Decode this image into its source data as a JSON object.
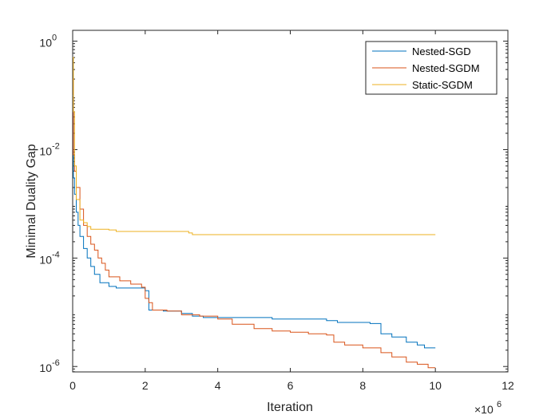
{
  "chart_data": {
    "type": "line",
    "title": "",
    "xlabel": "Iteration",
    "ylabel": "Minimal Duality Gap",
    "x_multiplier_label": "×10",
    "x_multiplier_exp": "6",
    "xlim": [
      0,
      12
    ],
    "ylim_log10": [
      -6.1,
      0.2
    ],
    "x_ticks": [
      0,
      2,
      4,
      6,
      8,
      10,
      12
    ],
    "x_tick_labels": [
      "0",
      "2",
      "4",
      "6",
      "8",
      "10",
      "12"
    ],
    "y_ticks_log10": [
      -6,
      -4,
      -2,
      0
    ],
    "y_tick_bases": [
      "10",
      "10",
      "10",
      "10"
    ],
    "y_tick_exps": [
      "-6",
      "-4",
      "-2",
      "0"
    ],
    "grid": false,
    "legend_position": "top-right",
    "series": [
      {
        "name": "Nested-SGD",
        "color": "#0072BD",
        "points": [
          [
            0,
            0.1
          ],
          [
            0.02,
            0.003
          ],
          [
            0.05,
            0.0015
          ],
          [
            0.1,
            0.0007
          ],
          [
            0.15,
            0.0004
          ],
          [
            0.2,
            0.00025
          ],
          [
            0.3,
            0.00015
          ],
          [
            0.4,
            0.0001
          ],
          [
            0.5,
            7e-05
          ],
          [
            0.6,
            5e-05
          ],
          [
            0.75,
            3.5e-05
          ],
          [
            1.0,
            3e-05
          ],
          [
            1.2,
            2.8e-05
          ],
          [
            1.8,
            2.8e-05
          ],
          [
            2.0,
            2.5e-05
          ],
          [
            2.1,
            1.1e-05
          ],
          [
            2.5,
            1.05e-05
          ],
          [
            3.0,
            9.5e-06
          ],
          [
            3.3,
            8.5e-06
          ],
          [
            3.6,
            8e-06
          ],
          [
            4.5,
            8e-06
          ],
          [
            5.5,
            7.5e-06
          ],
          [
            7.0,
            7e-06
          ],
          [
            7.3,
            6.5e-06
          ],
          [
            8.2,
            6.2e-06
          ],
          [
            8.5,
            4e-06
          ],
          [
            8.8,
            3.5e-06
          ],
          [
            9.2,
            2.8e-06
          ],
          [
            9.5,
            2.5e-06
          ],
          [
            9.7,
            2.2e-06
          ],
          [
            10.0,
            2.2e-06
          ]
        ]
      },
      {
        "name": "Nested-SGDM",
        "color": "#D95319",
        "points": [
          [
            0,
            0.2
          ],
          [
            0.02,
            0.008
          ],
          [
            0.05,
            0.004
          ],
          [
            0.1,
            0.002
          ],
          [
            0.2,
            0.0008
          ],
          [
            0.3,
            0.0004
          ],
          [
            0.4,
            0.00025
          ],
          [
            0.5,
            0.00018
          ],
          [
            0.6,
            0.00014
          ],
          [
            0.7,
            0.0001
          ],
          [
            0.8,
            8e-05
          ],
          [
            0.9,
            6e-05
          ],
          [
            1.0,
            4.5e-05
          ],
          [
            1.3,
            3.8e-05
          ],
          [
            1.6,
            3.3e-05
          ],
          [
            1.9,
            2.9e-05
          ],
          [
            2.0,
            1.8e-05
          ],
          [
            2.1,
            1.5e-05
          ],
          [
            2.2,
            1.1e-05
          ],
          [
            2.6,
            1.05e-05
          ],
          [
            3.0,
            9e-06
          ],
          [
            3.5,
            8.5e-06
          ],
          [
            4.0,
            7.5e-06
          ],
          [
            4.4,
            6e-06
          ],
          [
            5.0,
            5e-06
          ],
          [
            5.5,
            4.5e-06
          ],
          [
            6.0,
            4.3e-06
          ],
          [
            6.5,
            4e-06
          ],
          [
            7.0,
            3.8e-06
          ],
          [
            7.2,
            2.8e-06
          ],
          [
            7.5,
            2.5e-06
          ],
          [
            8.0,
            2.2e-06
          ],
          [
            8.5,
            1.8e-06
          ],
          [
            8.8,
            1.5e-06
          ],
          [
            9.2,
            1.2e-06
          ],
          [
            9.5,
            1.1e-06
          ],
          [
            9.8,
            9.5e-07
          ],
          [
            10.0,
            9.5e-07
          ]
        ]
      },
      {
        "name": "Static-SGDM",
        "color": "#EDB120",
        "points": [
          [
            0,
            0.5
          ],
          [
            0.02,
            0.05
          ],
          [
            0.05,
            0.005
          ],
          [
            0.1,
            0.0012
          ],
          [
            0.2,
            0.0005
          ],
          [
            0.3,
            0.00045
          ],
          [
            0.4,
            0.00038
          ],
          [
            0.5,
            0.00034
          ],
          [
            1.0,
            0.00033
          ],
          [
            1.2,
            0.00031
          ],
          [
            3.2,
            0.00029
          ],
          [
            3.3,
            0.00027
          ],
          [
            10.0,
            0.00027
          ]
        ]
      }
    ]
  }
}
